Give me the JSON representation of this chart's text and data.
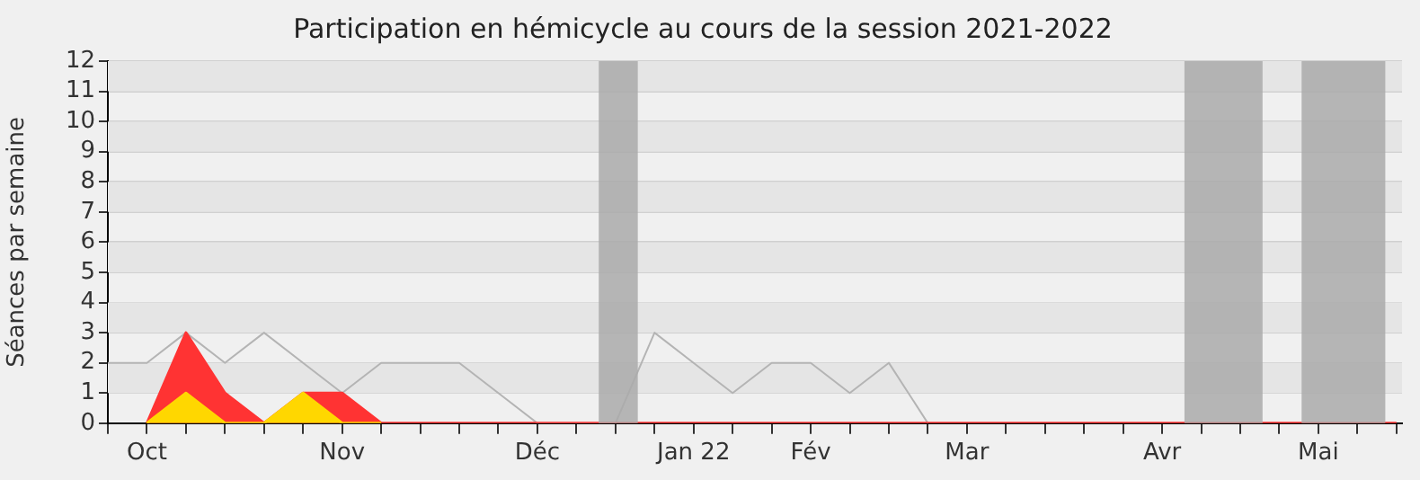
{
  "chart_data": {
    "type": "line",
    "title": "Participation en hémicycle au cours de la session 2021-2022",
    "ylabel": "Séances par semaine",
    "xlim": [
      "2021-09-30",
      "2022-05-20"
    ],
    "ylim": [
      0,
      12
    ],
    "yticks": [
      0,
      1,
      2,
      3,
      4,
      5,
      6,
      7,
      8,
      9,
      10,
      11,
      12
    ],
    "xticks": [
      {
        "value": "2021-09-30",
        "label": null
      },
      {
        "value": "2021-10-07",
        "label": "Oct"
      },
      {
        "value": "2021-10-14",
        "label": null
      },
      {
        "value": "2021-10-21",
        "label": null
      },
      {
        "value": "2021-10-28",
        "label": null
      },
      {
        "value": "2021-11-04",
        "label": null
      },
      {
        "value": "2021-11-11",
        "label": "Nov"
      },
      {
        "value": "2021-11-18",
        "label": null
      },
      {
        "value": "2021-11-25",
        "label": null
      },
      {
        "value": "2021-12-02",
        "label": null
      },
      {
        "value": "2021-12-09",
        "label": null
      },
      {
        "value": "2021-12-16",
        "label": "Déc"
      },
      {
        "value": "2021-12-23",
        "label": null
      },
      {
        "value": "2021-12-30",
        "label": null
      },
      {
        "value": "2022-01-06",
        "label": null
      },
      {
        "value": "2022-01-13",
        "label": "Jan 22"
      },
      {
        "value": "2022-01-20",
        "label": null
      },
      {
        "value": "2022-01-27",
        "label": null
      },
      {
        "value": "2022-02-03",
        "label": "Fév"
      },
      {
        "value": "2022-02-10",
        "label": null
      },
      {
        "value": "2022-02-17",
        "label": null
      },
      {
        "value": "2022-02-24",
        "label": null
      },
      {
        "value": "2022-03-03",
        "label": "Mar"
      },
      {
        "value": "2022-03-10",
        "label": null
      },
      {
        "value": "2022-03-17",
        "label": null
      },
      {
        "value": "2022-03-24",
        "label": null
      },
      {
        "value": "2022-03-31",
        "label": null
      },
      {
        "value": "2022-04-07",
        "label": "Avr"
      },
      {
        "value": "2022-04-14",
        "label": null
      },
      {
        "value": "2022-04-21",
        "label": null
      },
      {
        "value": "2022-04-28",
        "label": null
      },
      {
        "value": "2022-05-05",
        "label": "Mai"
      },
      {
        "value": "2022-05-12",
        "label": null
      },
      {
        "value": "2022-05-19",
        "label": null
      }
    ],
    "series": [
      {
        "color": "#b4b4b4",
        "x": [
          "2021-09-30",
          "2021-10-07",
          "2021-10-14",
          "2021-10-21",
          "2021-10-28",
          "2021-11-04",
          "2021-11-11",
          "2021-11-18",
          "2021-11-25",
          "2021-12-02",
          "2021-12-09",
          "2021-12-16",
          "2021-12-23",
          "2021-12-30",
          "2022-01-06",
          "2022-01-13",
          "2022-01-20",
          "2022-01-27",
          "2022-02-03",
          "2022-02-10",
          "2022-02-17",
          "2022-02-24"
        ],
        "values": [
          2,
          2,
          3,
          2,
          3,
          2,
          1,
          2,
          2,
          2,
          1,
          0,
          0,
          0,
          3,
          2,
          1,
          2,
          2,
          1,
          2,
          0
        ]
      },
      {
        "type": "area",
        "color": "#ff3333",
        "x": [
          "2021-10-07",
          "2021-10-14",
          "2021-10-21",
          "2021-10-28",
          "2021-11-04",
          "2021-11-11",
          "2021-11-18",
          "2021-11-25",
          "2022-05-19"
        ],
        "values": [
          0,
          3,
          1,
          0,
          1,
          1,
          0,
          0,
          0
        ]
      },
      {
        "type": "area",
        "color": "#ffd700",
        "x": [
          "2021-10-07",
          "2021-10-14",
          "2021-10-21",
          "2021-10-28",
          "2021-11-04",
          "2021-11-11",
          "2021-11-18"
        ],
        "values": [
          0,
          1,
          0,
          0,
          1,
          0,
          0
        ]
      }
    ],
    "bands": [
      {
        "axis": "x",
        "from": "2021-12-27",
        "to": "2022-01-03",
        "color": "#aaaaaa"
      },
      {
        "axis": "x",
        "from": "2022-04-11",
        "to": "2022-04-25",
        "color": "#aaaaaa"
      },
      {
        "axis": "x",
        "from": "2022-05-02",
        "to": "2022-05-17",
        "color": "#aaaaaa"
      }
    ],
    "grid": "y",
    "legend": false,
    "marker": "none",
    "line_style": "solid"
  }
}
